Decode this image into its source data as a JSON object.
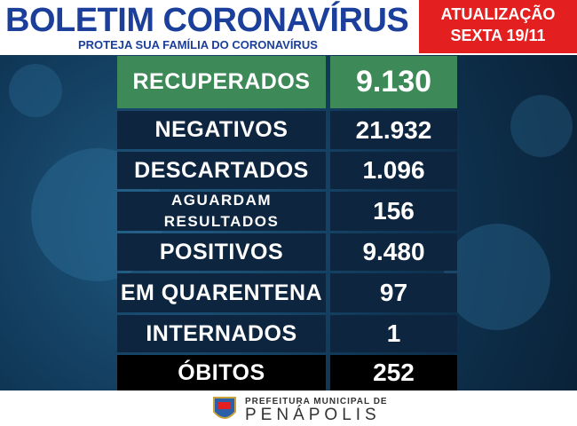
{
  "header": {
    "title": "BOLETIM CORONAVÍRUS",
    "subtitle": "PROTEJA SUA FAMÍLIA DO CORONAVÍRUS"
  },
  "update": {
    "line1": "ATUALIZAÇÃO",
    "line2": "SEXTA 19/11"
  },
  "table": {
    "rows": [
      {
        "label_lines": [
          "RECUPERADOS"
        ],
        "value": "9.130"
      },
      {
        "label_lines": [
          "NEGATIVOS"
        ],
        "value": "21.932"
      },
      {
        "label_lines": [
          "DESCARTADOS"
        ],
        "value": "1.096"
      },
      {
        "label_lines": [
          "AGUARDAM",
          "RESULTADOS"
        ],
        "value": "156"
      },
      {
        "label_lines": [
          "POSITIVOS"
        ],
        "value": "9.480"
      },
      {
        "label_lines": [
          "EM QUARENTENA"
        ],
        "value": "97"
      },
      {
        "label_lines": [
          "INTERNADOS"
        ],
        "value": "1"
      },
      {
        "label_lines": [
          "ÓBITOS"
        ],
        "value": "252"
      }
    ]
  },
  "footer": {
    "line1": "PREFEITURA MUNICIPAL DE",
    "line2": "PENÁPOLIS"
  }
}
